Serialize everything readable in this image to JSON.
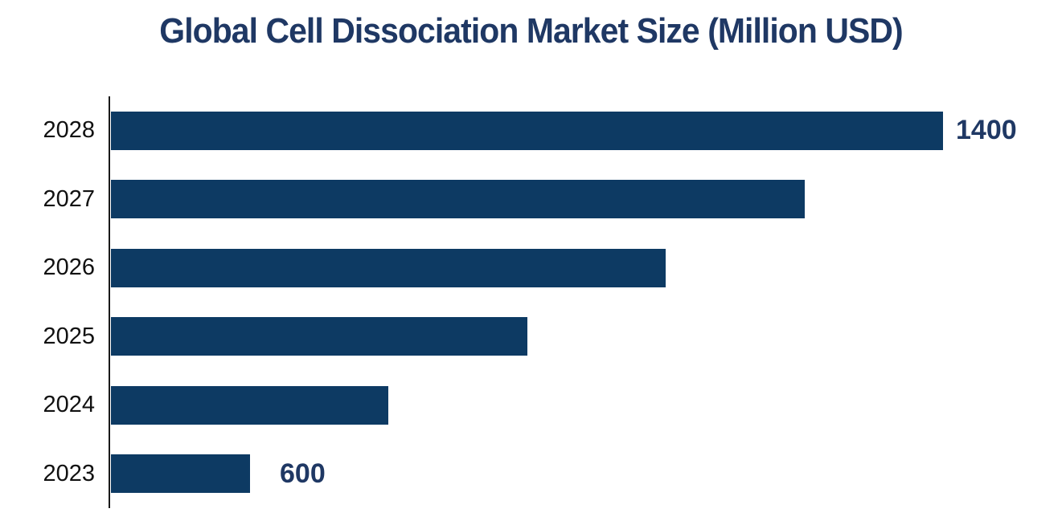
{
  "page": {
    "background": "#ffffff"
  },
  "chart_data": {
    "type": "bar",
    "orientation": "horizontal",
    "title": "Global Cell Dissociation Market Size (Million USD)",
    "categories": [
      "2028",
      "2027",
      "2026",
      "2025",
      "2024",
      "2023"
    ],
    "values": [
      1400,
      1240,
      1080,
      920,
      760,
      600
    ],
    "data_labels": [
      "1400",
      "",
      "",
      "",
      "",
      "600"
    ],
    "labeled_points": {
      "2028": 1400,
      "2023": 600
    },
    "xlabel": "",
    "ylabel": "",
    "value_range_implied": [
      600,
      1400
    ],
    "grid": false,
    "legend": false,
    "value_axis_ticks_visible": false,
    "colors": {
      "bar": "#0d3a63",
      "title": "#1f3864",
      "value_label": "#1f3864",
      "category_label": "#111111",
      "axis_line": "#1a1a1a"
    }
  }
}
